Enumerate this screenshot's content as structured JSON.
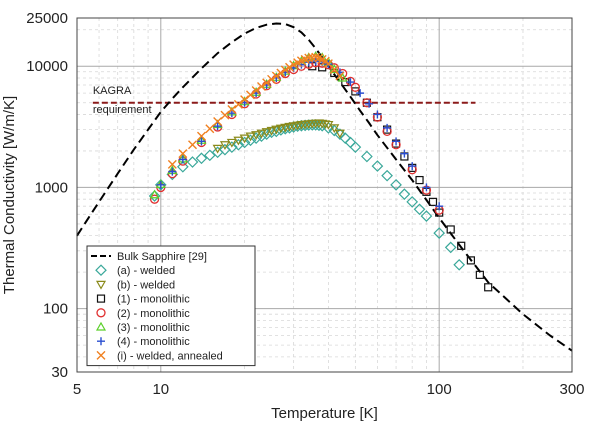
{
  "chart_data": {
    "type": "scatter",
    "title": "",
    "xlabel": "Temperature [K]",
    "ylabel": "Thermal Conductivity [W/m/K]",
    "xscale": "log",
    "yscale": "log",
    "xlim": [
      5,
      300
    ],
    "ylim": [
      30,
      25000
    ],
    "grid": true,
    "legend_position": "bottom-left",
    "x_ticks": [
      {
        "value": 5,
        "label": "5"
      },
      {
        "value": 10,
        "label": "10"
      },
      {
        "value": 100,
        "label": "100"
      },
      {
        "value": 300,
        "label": "300"
      }
    ],
    "y_ticks": [
      {
        "value": 30,
        "label": "30"
      },
      {
        "value": 100,
        "label": "100"
      },
      {
        "value": 1000,
        "label": "1000"
      },
      {
        "value": 10000,
        "label": "10000"
      },
      {
        "value": 25000,
        "label": "25000"
      }
    ],
    "annotations": [
      {
        "text": "KAGRA",
        "x": 5.7,
        "y": 5900
      },
      {
        "text": "requirement",
        "x": 5.7,
        "y": 4100
      }
    ],
    "reference_lines": [
      {
        "name": "KAGRA requirement",
        "y": 5000,
        "x_from": 5.7,
        "x_to": 135,
        "color": "#8b1a1a",
        "style": "dashed"
      }
    ],
    "series": [
      {
        "name": "Bulk Sapphire [29]",
        "kind": "line",
        "color": "#000000",
        "style": "dashed",
        "x": [
          5,
          5.5,
          6,
          7,
          8,
          9,
          10,
          11,
          12,
          14,
          16,
          18,
          20,
          22,
          24,
          26,
          28,
          30,
          32,
          34,
          36,
          38,
          40,
          44,
          48,
          52,
          56,
          60,
          70,
          80,
          100,
          120,
          150,
          200,
          250,
          300
        ],
        "y": [
          400,
          560,
          760,
          1300,
          2050,
          3000,
          4200,
          5400,
          6700,
          9600,
          12800,
          15800,
          18600,
          20700,
          22000,
          22500,
          22300,
          21000,
          19000,
          16500,
          14000,
          11800,
          10000,
          7400,
          5600,
          4300,
          3400,
          2700,
          1700,
          1150,
          560,
          320,
          165,
          90,
          60,
          45
        ]
      },
      {
        "name": "(a) - welded",
        "kind": "scatter",
        "marker": "diamond",
        "color": "#3aa89a",
        "x": [
          9.5,
          10,
          11,
          12,
          13,
          14,
          15,
          16,
          17,
          18,
          19,
          20,
          21,
          22,
          23,
          24,
          25,
          26,
          27,
          28,
          29,
          30,
          31,
          32,
          33,
          34,
          35,
          36,
          37,
          38,
          40,
          42,
          44,
          46,
          48,
          50,
          55,
          60,
          65,
          70,
          75,
          80,
          85,
          90,
          100,
          110,
          118
        ],
        "y": [
          850,
          1050,
          1280,
          1480,
          1620,
          1740,
          1840,
          1950,
          2050,
          2150,
          2250,
          2350,
          2450,
          2550,
          2650,
          2750,
          2850,
          2900,
          2980,
          3050,
          3100,
          3150,
          3200,
          3230,
          3250,
          3270,
          3280,
          3280,
          3260,
          3230,
          3100,
          2950,
          2750,
          2550,
          2350,
          2150,
          1800,
          1500,
          1250,
          1050,
          880,
          760,
          660,
          580,
          420,
          320,
          230
        ]
      },
      {
        "name": "(b) - welded",
        "kind": "scatter",
        "marker": "triangle-down",
        "color": "#8a8a1a",
        "x": [
          16,
          17,
          18,
          19,
          20,
          21,
          22,
          23,
          24,
          25,
          26,
          27,
          28,
          29,
          30,
          31,
          32,
          33,
          34,
          35,
          36,
          37,
          38,
          39,
          40,
          42,
          44
        ],
        "y": [
          2100,
          2250,
          2350,
          2450,
          2550,
          2650,
          2720,
          2800,
          2880,
          2950,
          3020,
          3080,
          3130,
          3180,
          3220,
          3260,
          3300,
          3320,
          3350,
          3370,
          3390,
          3400,
          3380,
          3340,
          3300,
          3100,
          2800
        ]
      },
      {
        "name": "(1) - monolithic",
        "kind": "scatter",
        "marker": "square",
        "color": "#111111",
        "x": [
          35,
          38,
          42,
          46,
          50,
          55,
          60,
          65,
          70,
          75,
          80,
          85,
          90,
          95,
          100,
          110,
          120,
          130,
          140,
          150
        ],
        "y": [
          10000,
          9800,
          8800,
          7400,
          6200,
          5000,
          3800,
          3000,
          2300,
          1800,
          1450,
          1150,
          920,
          760,
          620,
          450,
          330,
          250,
          190,
          150
        ]
      },
      {
        "name": "(2) - monolithic",
        "kind": "scatter",
        "marker": "circle",
        "color": "#e03030",
        "x": [
          9.5,
          10,
          11,
          12,
          14,
          16,
          18,
          20,
          22,
          24,
          26,
          28,
          30,
          32,
          34,
          36,
          38,
          40,
          42,
          45,
          48,
          50,
          55,
          60,
          65,
          70,
          80,
          90,
          100
        ],
        "y": [
          800,
          1000,
          1300,
          1650,
          2350,
          3150,
          4000,
          4900,
          5900,
          6900,
          7800,
          8700,
          9400,
          10000,
          10400,
          10700,
          10600,
          10300,
          9700,
          8700,
          7500,
          6700,
          5000,
          3800,
          2900,
          2250,
          1400,
          950,
          650
        ]
      },
      {
        "name": "(3) - monolithic",
        "kind": "scatter",
        "marker": "triangle-up",
        "color": "#5bd02a",
        "x": [
          9.5,
          10,
          11,
          12,
          14,
          16,
          18,
          20,
          22,
          24,
          26,
          28,
          30,
          32,
          34,
          36,
          38,
          40,
          42,
          45
        ],
        "y": [
          870,
          1060,
          1380,
          1720,
          2450,
          3300,
          4200,
          5100,
          6100,
          7100,
          8100,
          9100,
          10100,
          11000,
          11800,
          12100,
          11800,
          10800,
          9400,
          8000
        ]
      },
      {
        "name": "(4) - monolithic",
        "kind": "scatter",
        "marker": "plus",
        "color": "#2a4fd0",
        "x": [
          10,
          11,
          12,
          14,
          16,
          18,
          20,
          22,
          24,
          26,
          28,
          30,
          32,
          34,
          36,
          38,
          40,
          44,
          48,
          52,
          56,
          60,
          65,
          70,
          75,
          80,
          90,
          100
        ],
        "y": [
          1050,
          1350,
          1700,
          2400,
          3200,
          4100,
          5000,
          6000,
          7000,
          8000,
          8900,
          9700,
          10300,
          10800,
          11000,
          10900,
          10400,
          8900,
          7400,
          6000,
          4900,
          4000,
          3100,
          2400,
          1900,
          1500,
          1000,
          700
        ]
      },
      {
        "name": "(i) - welded, annealed",
        "kind": "scatter",
        "marker": "x",
        "color": "#f08020",
        "x": [
          11,
          12,
          13,
          14,
          15,
          16,
          17,
          18,
          19,
          20,
          21,
          22,
          23,
          24,
          25,
          26,
          27,
          28,
          29,
          30,
          31,
          32,
          33,
          34,
          35,
          36,
          37,
          38,
          39,
          40,
          42,
          44
        ],
        "y": [
          1550,
          1900,
          2250,
          2650,
          3050,
          3500,
          3950,
          4400,
          4850,
          5300,
          5800,
          6300,
          6800,
          7300,
          7800,
          8300,
          8800,
          9300,
          9800,
          10300,
          10700,
          11100,
          11400,
          11700,
          11800,
          11900,
          11700,
          11400,
          11000,
          10500,
          9400,
          8300
        ]
      }
    ]
  }
}
